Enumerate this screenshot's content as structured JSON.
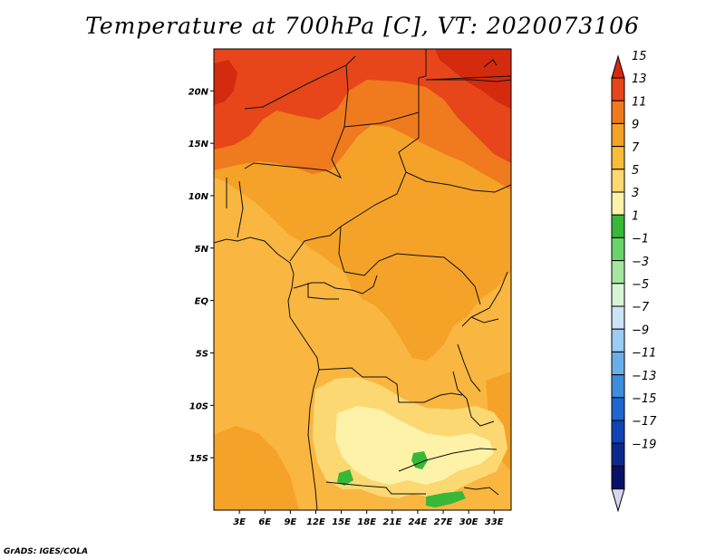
{
  "title": "Temperature at 700hPa [C], VT: 2020073106",
  "credit": "GrADS: IGES/COLA",
  "chart_data": {
    "type": "heatmap",
    "variable": "Temperature at 700hPa",
    "units": "C",
    "valid_time": "2020073106",
    "lon_range": [
      0,
      35
    ],
    "lat_range": [
      -20,
      24
    ],
    "x_ticks": [
      "3E",
      "6E",
      "9E",
      "12E",
      "15E",
      "18E",
      "21E",
      "24E",
      "27E",
      "30E",
      "33E"
    ],
    "y_ticks": [
      "20N",
      "15N",
      "10N",
      "5N",
      "EQ",
      "5S",
      "10S",
      "15S"
    ],
    "colorbar": {
      "levels": [
        "15",
        "13",
        "11",
        "9",
        "7",
        "5",
        "3",
        "1",
        "-1",
        "-3",
        "-5",
        "-7",
        "-9",
        "-11",
        "-13",
        "-15",
        "-17",
        "-19"
      ],
      "colors": [
        "#d42a0e",
        "#e6461a",
        "#f07a1e",
        "#f5a228",
        "#f9bc3c",
        "#fbd872",
        "#fdf2a8",
        "#38b838",
        "#6ad26a",
        "#a4e6a0",
        "#d8f4d6",
        "#cce4f6",
        "#9cccf2",
        "#6aaee8",
        "#3c8edc",
        "#2066d2",
        "#1044b4",
        "#0c2a8c",
        "#081068",
        "#d6d6f0"
      ],
      "max_triangle_color": "#d42a0e",
      "min_triangle_color": "#d6d6f0"
    }
  }
}
